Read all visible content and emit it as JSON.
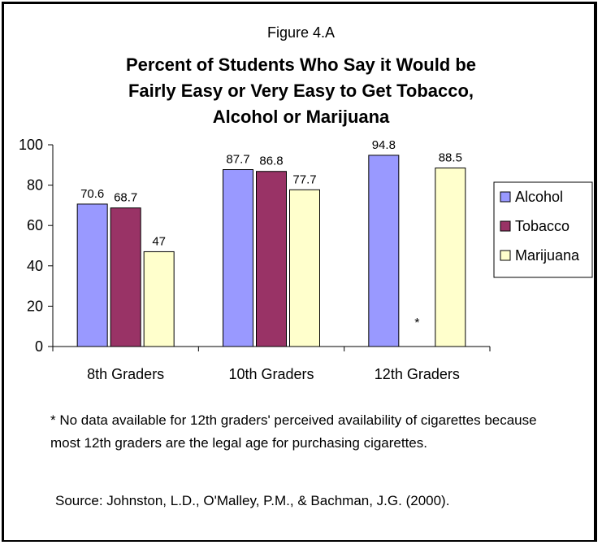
{
  "figure_label": "Figure 4.A",
  "title_lines": [
    "Percent of Students Who Say it Would be",
    "Fairly Easy or Very Easy to Get Tobacco,",
    "Alcohol or Marijuana"
  ],
  "footnote": "* No data available for 12th graders' perceived availability of cigarettes because most 12th graders are the legal age for purchasing cigarettes.",
  "source": "Source: Johnston, L.D., O'Malley, P.M., & Bachman, J.G. (2000).",
  "missing_marker": "*",
  "chart_data": {
    "type": "bar",
    "title": "Percent of Students Who Say it Would be Fairly Easy or Very Easy to Get Tobacco, Alcohol or Marijuana",
    "categories": [
      "8th Graders",
      "10th Graders",
      "12th Graders"
    ],
    "series": [
      {
        "name": "Alcohol",
        "values": [
          70.6,
          87.7,
          94.8
        ],
        "labels": [
          "70.6",
          "87.7",
          "94.8"
        ],
        "color": "#9999ff"
      },
      {
        "name": "Tobacco",
        "values": [
          68.7,
          86.8,
          null
        ],
        "labels": [
          "68.7",
          "86.8",
          ""
        ],
        "color": "#993366"
      },
      {
        "name": "Marijuana",
        "values": [
          47,
          77.7,
          88.5
        ],
        "labels": [
          "47",
          "77.7",
          "88.5"
        ],
        "color": "#ffffcc"
      }
    ],
    "ylim": [
      0,
      100
    ],
    "yticks": [
      "0",
      "20",
      "40",
      "60",
      "80",
      "100"
    ],
    "grid": false,
    "legend": "right"
  }
}
